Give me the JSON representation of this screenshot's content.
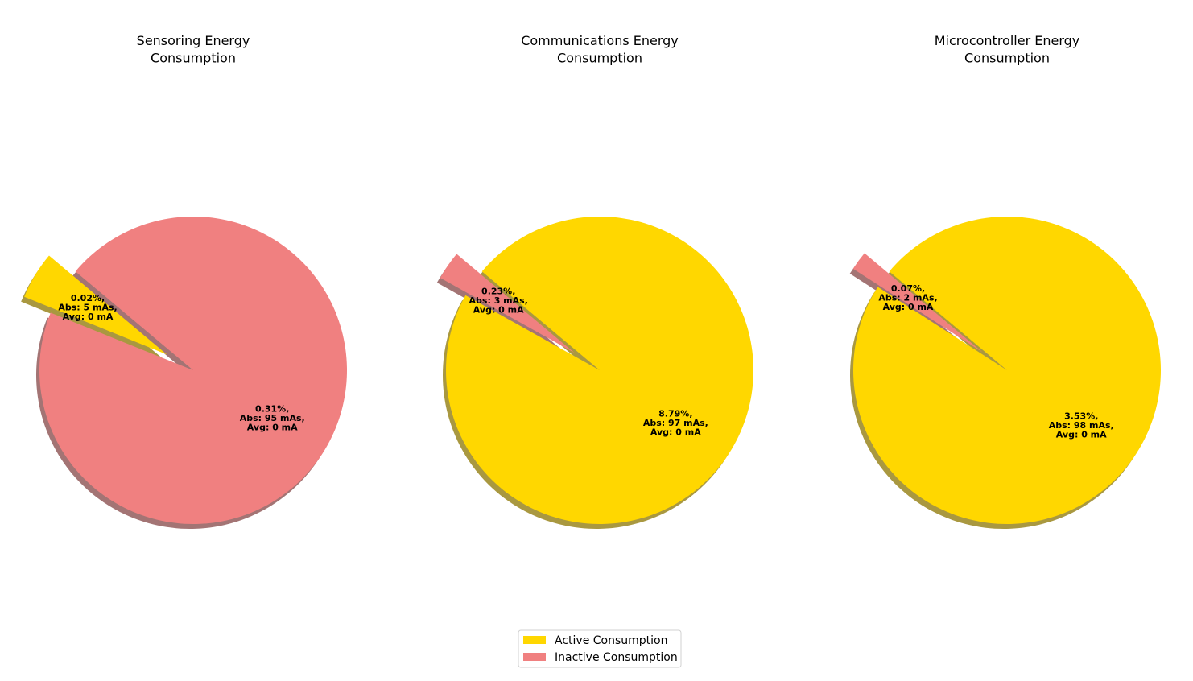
{
  "legend": {
    "placement": "bottom-center",
    "items": [
      {
        "label": "Active Consumption",
        "color": "#FFD700"
      },
      {
        "label": "Inactive Consumption",
        "color": "#F08080"
      }
    ]
  },
  "chart_data": [
    {
      "type": "pie",
      "title": [
        "Sensoring Energy",
        "Consumption"
      ],
      "shadow": true,
      "slices": [
        {
          "category": "Active Consumption",
          "value": 5,
          "color": "#FFD700",
          "exploded": true,
          "label": [
            "0.02%,",
            "Abs: 5 mAs,",
            "Avg: 0 mA"
          ]
        },
        {
          "category": "Inactive Consumption",
          "value": 95,
          "color": "#F08080",
          "exploded": false,
          "label": [
            "0.31%,",
            "Abs: 95 mAs,",
            "Avg: 0 mA"
          ]
        }
      ]
    },
    {
      "type": "pie",
      "title": [
        "Communications Energy",
        "Consumption"
      ],
      "shadow": true,
      "slices": [
        {
          "category": "Inactive Consumption",
          "value": 3,
          "color": "#F08080",
          "exploded": true,
          "label": [
            "0.23%,",
            "Abs: 3 mAs,",
            "Avg: 0 mA"
          ]
        },
        {
          "category": "Active Consumption",
          "value": 97,
          "color": "#FFD700",
          "exploded": false,
          "label": [
            "8.79%,",
            "Abs: 97 mAs,",
            "Avg: 0 mA"
          ]
        }
      ]
    },
    {
      "type": "pie",
      "title": [
        "Microcontroller Energy",
        "Consumption"
      ],
      "shadow": true,
      "slices": [
        {
          "category": "Inactive Consumption",
          "value": 2,
          "color": "#F08080",
          "exploded": true,
          "label": [
            "0.07%,",
            "Abs: 2 mAs,",
            "Avg: 0 mA"
          ]
        },
        {
          "category": "Active Consumption",
          "value": 98,
          "color": "#FFD700",
          "exploded": false,
          "label": [
            "3.53%,",
            "Abs: 98 mAs,",
            "Avg: 0 mA"
          ]
        }
      ]
    }
  ]
}
